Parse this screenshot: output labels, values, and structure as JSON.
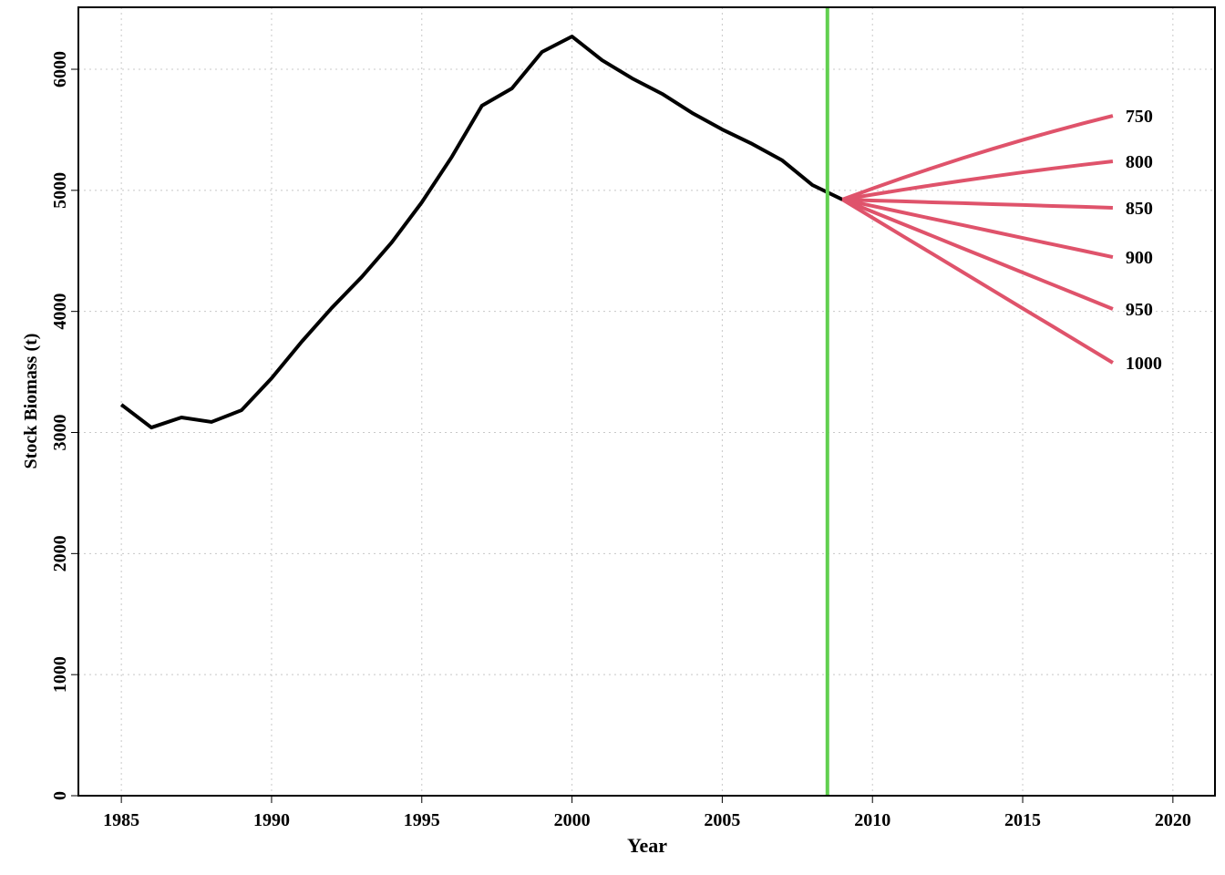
{
  "chart_data": {
    "type": "line",
    "xlabel": "Year",
    "ylabel": "Stock Biomass (t)",
    "xlim": [
      1983.57,
      2021.4
    ],
    "ylim": [
      0,
      6512
    ],
    "xticks": [
      1985,
      1990,
      1995,
      2000,
      2005,
      2010,
      2015,
      2020
    ],
    "yticks": [
      0,
      1000,
      2000,
      3000,
      4000,
      5000,
      6000
    ],
    "grid": true,
    "vline": {
      "x": 2008.5,
      "color": "#61d04f"
    },
    "series": [
      {
        "color": "#000000",
        "x": [
          1985,
          1986,
          1987,
          1988,
          1989,
          1990,
          1991,
          1992,
          1993,
          1994,
          1995,
          1996,
          1997,
          1998,
          1999,
          2000,
          2001,
          2002,
          2003,
          2004,
          2005,
          2006,
          2007,
          2008,
          2009
        ],
        "values": [
          3230,
          3041,
          3124,
          3087,
          3184,
          3448,
          3749,
          4028,
          4284,
          4570,
          4901,
          5277,
          5699,
          5842,
          6143,
          6271,
          6075,
          5925,
          5797,
          5639,
          5503,
          5383,
          5247,
          5044,
          4924
        ]
      },
      {
        "name": "750",
        "color": "#df536b",
        "x": [
          2009,
          2010,
          2011,
          2012,
          2013,
          2014,
          2015,
          2016,
          2017,
          2018
        ],
        "values": [
          4924,
          5015,
          5102,
          5185,
          5266,
          5343,
          5416,
          5486,
          5553,
          5616
        ]
      },
      {
        "name": "800",
        "color": "#df536b",
        "x": [
          2009,
          2010,
          2011,
          2012,
          2013,
          2014,
          2015,
          2016,
          2017,
          2018
        ],
        "values": [
          4924,
          4965,
          5005,
          5043,
          5080,
          5115,
          5149,
          5181,
          5211,
          5240
        ]
      },
      {
        "name": "850",
        "color": "#df536b",
        "x": [
          2009,
          2010,
          2011,
          2012,
          2013,
          2014,
          2015,
          2016,
          2017,
          2018
        ],
        "values": [
          4924,
          4916,
          4909,
          4901,
          4894,
          4886,
          4879,
          4871,
          4864,
          4856
        ]
      },
      {
        "name": "900",
        "color": "#df536b",
        "x": [
          2009,
          2010,
          2011,
          2012,
          2013,
          2014,
          2015,
          2016,
          2017,
          2018
        ],
        "values": [
          4924,
          4871,
          4818,
          4765,
          4713,
          4660,
          4607,
          4554,
          4502,
          4449
        ]
      },
      {
        "name": "950",
        "color": "#df536b",
        "x": [
          2009,
          2010,
          2011,
          2012,
          2013,
          2014,
          2015,
          2016,
          2017,
          2018
        ],
        "values": [
          4924,
          4824,
          4723,
          4623,
          4522,
          4422,
          4321,
          4221,
          4121,
          4020
        ]
      },
      {
        "name": "1000",
        "color": "#df536b",
        "x": [
          2009,
          2010,
          2011,
          2012,
          2013,
          2014,
          2015,
          2016,
          2017,
          2018
        ],
        "values": [
          4924,
          4774,
          4624,
          4475,
          4325,
          4175,
          4025,
          3876,
          3726,
          3576
        ]
      }
    ]
  }
}
